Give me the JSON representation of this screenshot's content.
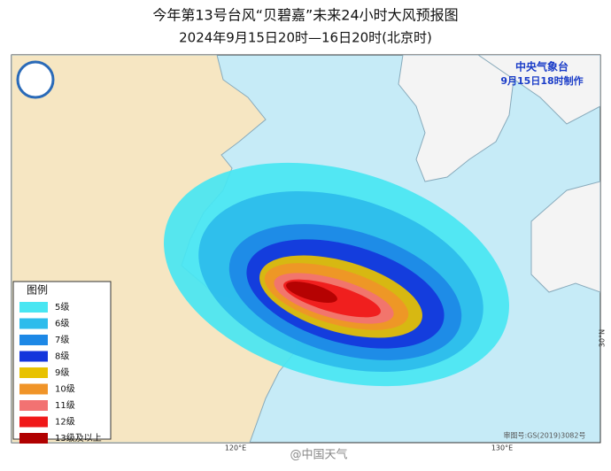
{
  "header": {
    "title": "今年第13号台风“贝碧嘉”未来24小时大风预报图",
    "subtitle": "2024年9月15日20时—16日20时(北京时)"
  },
  "agency": {
    "name": "中央气象台",
    "issued": "9月15日18时制作"
  },
  "legend": {
    "title": "图例",
    "items": [
      {
        "label": "5级",
        "color": "#48e6f2"
      },
      {
        "label": "6级",
        "color": "#2cbcec"
      },
      {
        "label": "7级",
        "color": "#1d88e6"
      },
      {
        "label": "8级",
        "color": "#1436dc"
      },
      {
        "label": "9级",
        "color": "#e8c200"
      },
      {
        "label": "10级",
        "color": "#f09428"
      },
      {
        "label": "11级",
        "color": "#f27272"
      },
      {
        "label": "12级",
        "color": "#f01818"
      },
      {
        "label": "13级及以上",
        "color": "#b00000"
      }
    ]
  },
  "axes": {
    "lon_labels": [
      "120°E",
      "130°E"
    ],
    "lat_labels": [
      "30°N"
    ]
  },
  "footer": {
    "review": "审图号:GS(2019)3082号",
    "watermark": "@中国天气"
  }
}
